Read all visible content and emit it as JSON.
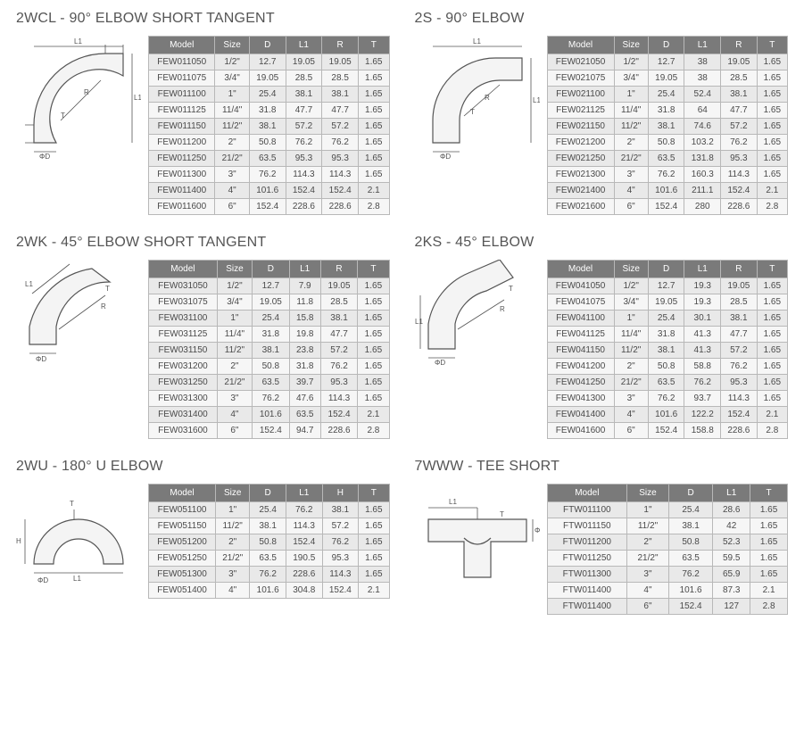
{
  "sections": {
    "s2wcl": {
      "title": "2WCL - 90° ELBOW SHORT TANGENT",
      "columns": [
        "Model",
        "Size",
        "D",
        "L1",
        "R",
        "T"
      ],
      "rows": [
        [
          "FEW011050",
          "1/2\"",
          "12.7",
          "19.05",
          "19.05",
          "1.65"
        ],
        [
          "FEW011075",
          "3/4\"",
          "19.05",
          "28.5",
          "28.5",
          "1.65"
        ],
        [
          "FEW011100",
          "1\"",
          "25.4",
          "38.1",
          "38.1",
          "1.65"
        ],
        [
          "FEW011125",
          "11/4\"",
          "31.8",
          "47.7",
          "47.7",
          "1.65"
        ],
        [
          "FEW011150",
          "11/2\"",
          "38.1",
          "57.2",
          "57.2",
          "1.65"
        ],
        [
          "FEW011200",
          "2\"",
          "50.8",
          "76.2",
          "76.2",
          "1.65"
        ],
        [
          "FEW011250",
          "21/2\"",
          "63.5",
          "95.3",
          "95.3",
          "1.65"
        ],
        [
          "FEW011300",
          "3\"",
          "76.2",
          "114.3",
          "114.3",
          "1.65"
        ],
        [
          "FEW011400",
          "4\"",
          "101.6",
          "152.4",
          "152.4",
          "2.1"
        ],
        [
          "FEW011600",
          "6\"",
          "152.4",
          "228.6",
          "228.6",
          "2.8"
        ]
      ],
      "diagram_labels": {
        "l1h": "L1",
        "l1v": "L1",
        "r": "R",
        "t": "T",
        "d": "ΦD"
      }
    },
    "s2s": {
      "title": "2S - 90° ELBOW",
      "columns": [
        "Model",
        "Size",
        "D",
        "L1",
        "R",
        "T"
      ],
      "rows": [
        [
          "FEW021050",
          "1/2\"",
          "12.7",
          "38",
          "19.05",
          "1.65"
        ],
        [
          "FEW021075",
          "3/4\"",
          "19.05",
          "38",
          "28.5",
          "1.65"
        ],
        [
          "FEW021100",
          "1\"",
          "25.4",
          "52.4",
          "38.1",
          "1.65"
        ],
        [
          "FEW021125",
          "11/4\"",
          "31.8",
          "64",
          "47.7",
          "1.65"
        ],
        [
          "FEW021150",
          "11/2\"",
          "38.1",
          "74.6",
          "57.2",
          "1.65"
        ],
        [
          "FEW021200",
          "2\"",
          "50.8",
          "103.2",
          "76.2",
          "1.65"
        ],
        [
          "FEW021250",
          "21/2\"",
          "63.5",
          "131.8",
          "95.3",
          "1.65"
        ],
        [
          "FEW021300",
          "3\"",
          "76.2",
          "160.3",
          "114.3",
          "1.65"
        ],
        [
          "FEW021400",
          "4\"",
          "101.6",
          "211.1",
          "152.4",
          "2.1"
        ],
        [
          "FEW021600",
          "6\"",
          "152.4",
          "280",
          "228.6",
          "2.8"
        ]
      ],
      "diagram_labels": {
        "l1h": "L1",
        "l1v": "L1",
        "r": "R",
        "t": "T",
        "d": "ΦD"
      }
    },
    "s2wk": {
      "title": "2WK - 45° ELBOW SHORT TANGENT",
      "columns": [
        "Model",
        "Size",
        "D",
        "L1",
        "R",
        "T"
      ],
      "rows": [
        [
          "FEW031050",
          "1/2\"",
          "12.7",
          "7.9",
          "19.05",
          "1.65"
        ],
        [
          "FEW031075",
          "3/4\"",
          "19.05",
          "11.8",
          "28.5",
          "1.65"
        ],
        [
          "FEW031100",
          "1\"",
          "25.4",
          "15.8",
          "38.1",
          "1.65"
        ],
        [
          "FEW031125",
          "11/4\"",
          "31.8",
          "19.8",
          "47.7",
          "1.65"
        ],
        [
          "FEW031150",
          "11/2\"",
          "38.1",
          "23.8",
          "57.2",
          "1.65"
        ],
        [
          "FEW031200",
          "2\"",
          "50.8",
          "31.8",
          "76.2",
          "1.65"
        ],
        [
          "FEW031250",
          "21/2\"",
          "63.5",
          "39.7",
          "95.3",
          "1.65"
        ],
        [
          "FEW031300",
          "3\"",
          "76.2",
          "47.6",
          "114.3",
          "1.65"
        ],
        [
          "FEW031400",
          "4\"",
          "101.6",
          "63.5",
          "152.4",
          "2.1"
        ],
        [
          "FEW031600",
          "6\"",
          "152.4",
          "94.7",
          "228.6",
          "2.8"
        ]
      ],
      "diagram_labels": {
        "l1": "L1",
        "r": "R",
        "t": "T",
        "d": "ΦD"
      }
    },
    "s2ks": {
      "title": "2KS - 45° ELBOW",
      "columns": [
        "Model",
        "Size",
        "D",
        "L1",
        "R",
        "T"
      ],
      "rows": [
        [
          "FEW041050",
          "1/2\"",
          "12.7",
          "19.3",
          "19.05",
          "1.65"
        ],
        [
          "FEW041075",
          "3/4\"",
          "19.05",
          "19.3",
          "28.5",
          "1.65"
        ],
        [
          "FEW041100",
          "1\"",
          "25.4",
          "30.1",
          "38.1",
          "1.65"
        ],
        [
          "FEW041125",
          "11/4\"",
          "31.8",
          "41.3",
          "47.7",
          "1.65"
        ],
        [
          "FEW041150",
          "11/2\"",
          "38.1",
          "41.3",
          "57.2",
          "1.65"
        ],
        [
          "FEW041200",
          "2\"",
          "50.8",
          "58.8",
          "76.2",
          "1.65"
        ],
        [
          "FEW041250",
          "21/2\"",
          "63.5",
          "76.2",
          "95.3",
          "1.65"
        ],
        [
          "FEW041300",
          "3\"",
          "76.2",
          "93.7",
          "114.3",
          "1.65"
        ],
        [
          "FEW041400",
          "4\"",
          "101.6",
          "122.2",
          "152.4",
          "2.1"
        ],
        [
          "FEW041600",
          "6\"",
          "152.4",
          "158.8",
          "228.6",
          "2.8"
        ]
      ],
      "diagram_labels": {
        "l1": "L1",
        "r": "R",
        "t": "T",
        "d": "ΦD"
      }
    },
    "s2wu": {
      "title": "2WU - 180° U ELBOW",
      "columns": [
        "Model",
        "Size",
        "D",
        "L1",
        "H",
        "T"
      ],
      "rows": [
        [
          "FEW051100",
          "1\"",
          "25.4",
          "76.2",
          "38.1",
          "1.65"
        ],
        [
          "FEW051150",
          "11/2\"",
          "38.1",
          "114.3",
          "57.2",
          "1.65"
        ],
        [
          "FEW051200",
          "2\"",
          "50.8",
          "152.4",
          "76.2",
          "1.65"
        ],
        [
          "FEW051250",
          "21/2\"",
          "63.5",
          "190.5",
          "95.3",
          "1.65"
        ],
        [
          "FEW051300",
          "3\"",
          "76.2",
          "228.6",
          "114.3",
          "1.65"
        ],
        [
          "FEW051400",
          "4\"",
          "101.6",
          "304.8",
          "152.4",
          "2.1"
        ]
      ],
      "diagram_labels": {
        "l1": "L1",
        "h": "H",
        "t": "T",
        "d": "ΦD"
      }
    },
    "s7www": {
      "title": "7WWW - TEE SHORT",
      "columns": [
        "Model",
        "Size",
        "D",
        "L1",
        "T"
      ],
      "rows": [
        [
          "FTW011100",
          "1\"",
          "25.4",
          "28.6",
          "1.65"
        ],
        [
          "FTW011150",
          "11/2\"",
          "38.1",
          "42",
          "1.65"
        ],
        [
          "FTW011200",
          "2\"",
          "50.8",
          "52.3",
          "1.65"
        ],
        [
          "FTW011250",
          "21/2\"",
          "63.5",
          "59.5",
          "1.65"
        ],
        [
          "FTW011300",
          "3\"",
          "76.2",
          "65.9",
          "1.65"
        ],
        [
          "FTW011400",
          "4\"",
          "101.6",
          "87.3",
          "2.1"
        ],
        [
          "FTW011400",
          "6\"",
          "152.4",
          "127",
          "2.8"
        ]
      ],
      "diagram_labels": {
        "l1": "L1",
        "t": "T",
        "d": "ΦD"
      }
    }
  },
  "styling": {
    "header_bg": "#7a7a7a",
    "header_fg": "#ffffff",
    "row_odd_bg": "#e9e9e9",
    "row_even_bg": "#f6f6f6",
    "border_color": "#b8b8b8",
    "title_color": "#555555",
    "font_size_title": 16,
    "font_size_table": 10,
    "page_bg": "#ffffff"
  }
}
